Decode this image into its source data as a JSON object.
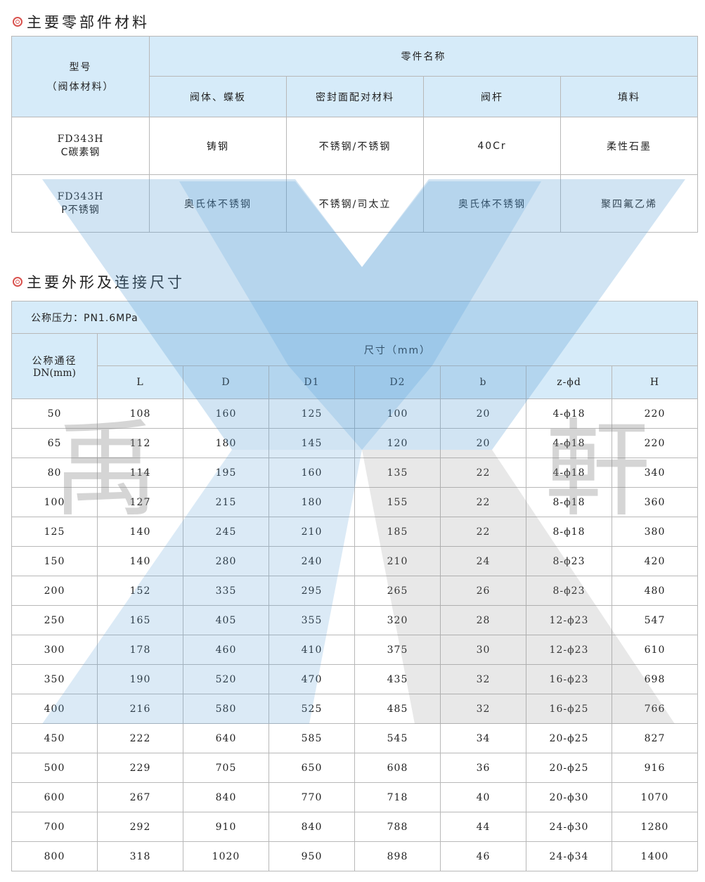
{
  "section1": {
    "title": "主要零部件材料"
  },
  "materials": {
    "model_header": "型号",
    "model_sub": "（阀体材料）",
    "parts_header": "零件名称",
    "columns": [
      "阀体、蝶板",
      "密封面配对材料",
      "阀杆",
      "填料"
    ],
    "rows": [
      {
        "model": "FD343H",
        "material": "C碳素钢",
        "cells": [
          "铸钢",
          "不锈钢/不锈钢",
          "40Cr",
          "柔性石墨"
        ]
      },
      {
        "model": "FD343H",
        "material": "P不锈钢",
        "cells": [
          "奥氏体不锈钢",
          "不锈钢/司太立",
          "奥氏体不锈钢",
          "聚四氟乙烯"
        ]
      }
    ]
  },
  "section2": {
    "title": "主要外形及连接尺寸"
  },
  "dimensions": {
    "pressure": "公称压力：PN1.6MPa",
    "dn_header": "公称通径",
    "dn_unit": "DN(mm)",
    "size_header": "尺寸（mm）",
    "columns": [
      "L",
      "D",
      "D1",
      "D2",
      "b",
      "z-ϕd",
      "H"
    ],
    "rows": [
      [
        "50",
        "108",
        "160",
        "125",
        "100",
        "20",
        "4-ϕ18",
        "220"
      ],
      [
        "65",
        "112",
        "180",
        "145",
        "120",
        "20",
        "4-ϕ18",
        "220"
      ],
      [
        "80",
        "114",
        "195",
        "160",
        "135",
        "22",
        "4-ϕ18",
        "340"
      ],
      [
        "100",
        "127",
        "215",
        "180",
        "155",
        "22",
        "8-ϕ18",
        "360"
      ],
      [
        "125",
        "140",
        "245",
        "210",
        "185",
        "22",
        "8-ϕ18",
        "380"
      ],
      [
        "150",
        "140",
        "280",
        "240",
        "210",
        "24",
        "8-ϕ23",
        "420"
      ],
      [
        "200",
        "152",
        "335",
        "295",
        "265",
        "26",
        "8-ϕ23",
        "480"
      ],
      [
        "250",
        "165",
        "405",
        "355",
        "320",
        "28",
        "12-ϕ23",
        "547"
      ],
      [
        "300",
        "178",
        "460",
        "410",
        "375",
        "30",
        "12-ϕ23",
        "610"
      ],
      [
        "350",
        "190",
        "520",
        "470",
        "435",
        "32",
        "16-ϕ23",
        "698"
      ],
      [
        "400",
        "216",
        "580",
        "525",
        "485",
        "32",
        "16-ϕ25",
        "766"
      ],
      [
        "450",
        "222",
        "640",
        "585",
        "545",
        "34",
        "20-ϕ25",
        "827"
      ],
      [
        "500",
        "229",
        "705",
        "650",
        "608",
        "36",
        "20-ϕ25",
        "916"
      ],
      [
        "600",
        "267",
        "840",
        "770",
        "718",
        "40",
        "20-ϕ30",
        "1070"
      ],
      [
        "700",
        "292",
        "910",
        "840",
        "788",
        "44",
        "24-ϕ30",
        "1280"
      ],
      [
        "800",
        "318",
        "1020",
        "950",
        "898",
        "46",
        "24-ϕ34",
        "1400"
      ]
    ]
  },
  "watermark": {
    "text": "禹軒",
    "blue": "#5a9fd4",
    "grey": "#8a8a8a"
  }
}
